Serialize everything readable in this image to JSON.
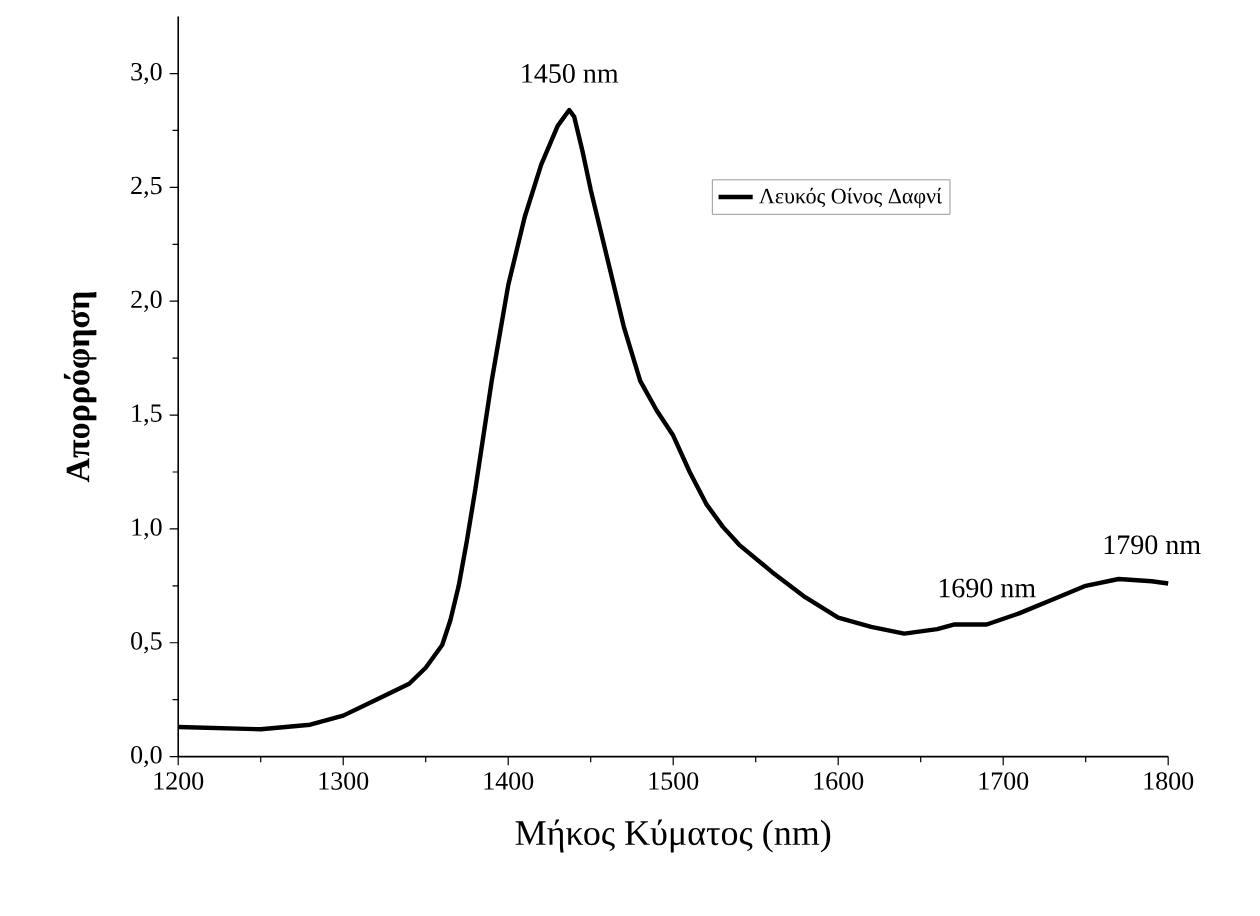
{
  "chart_data": {
    "type": "line",
    "xlabel": "Μήκος Κύματος (nm)",
    "ylabel": "Απορρόφηση",
    "xlim": [
      1200,
      1800
    ],
    "xticks": [
      1200,
      1300,
      1400,
      1500,
      1600,
      1700,
      1800
    ],
    "ylim": [
      0,
      3.25
    ],
    "yticks": [
      {
        "value": 0,
        "label": "0,0"
      },
      {
        "value": 0.5,
        "label": "0,5"
      },
      {
        "value": 1,
        "label": "1,0"
      },
      {
        "value": 1.5,
        "label": "1,5"
      },
      {
        "value": 2,
        "label": "2,0"
      },
      {
        "value": 2.5,
        "label": "2,5"
      },
      {
        "value": 3,
        "label": "3,0"
      }
    ],
    "legend": "top right",
    "grid": false,
    "series": [
      {
        "name": "Λευκός Οίνος Δαφνί",
        "color": "#000000",
        "x": [
          1200,
          1250,
          1280,
          1300,
          1320,
          1340,
          1350,
          1360,
          1365,
          1370,
          1375,
          1380,
          1390,
          1400,
          1410,
          1420,
          1430,
          1437,
          1440,
          1445,
          1450,
          1460,
          1470,
          1480,
          1490,
          1500,
          1510,
          1520,
          1530,
          1540,
          1560,
          1580,
          1600,
          1620,
          1640,
          1660,
          1670,
          1690,
          1710,
          1730,
          1750,
          1770,
          1790,
          1800
        ],
        "values": [
          0.13,
          0.12,
          0.14,
          0.18,
          0.25,
          0.32,
          0.39,
          0.49,
          0.6,
          0.75,
          0.95,
          1.17,
          1.65,
          2.07,
          2.37,
          2.6,
          2.77,
          2.84,
          2.81,
          2.66,
          2.49,
          2.19,
          1.89,
          1.65,
          1.52,
          1.41,
          1.25,
          1.11,
          1.01,
          0.93,
          0.81,
          0.7,
          0.61,
          0.57,
          0.54,
          0.56,
          0.58,
          0.58,
          0.63,
          0.69,
          0.75,
          0.78,
          0.77,
          0.76
        ]
      }
    ],
    "annotations": [
      {
        "text": "1450 nm",
        "x": 1437,
        "y": 2.84
      },
      {
        "text": "1690 nm",
        "x": 1690,
        "y": 0.58
      },
      {
        "text": "1790 nm",
        "x": 1790,
        "y": 0.77
      }
    ]
  }
}
